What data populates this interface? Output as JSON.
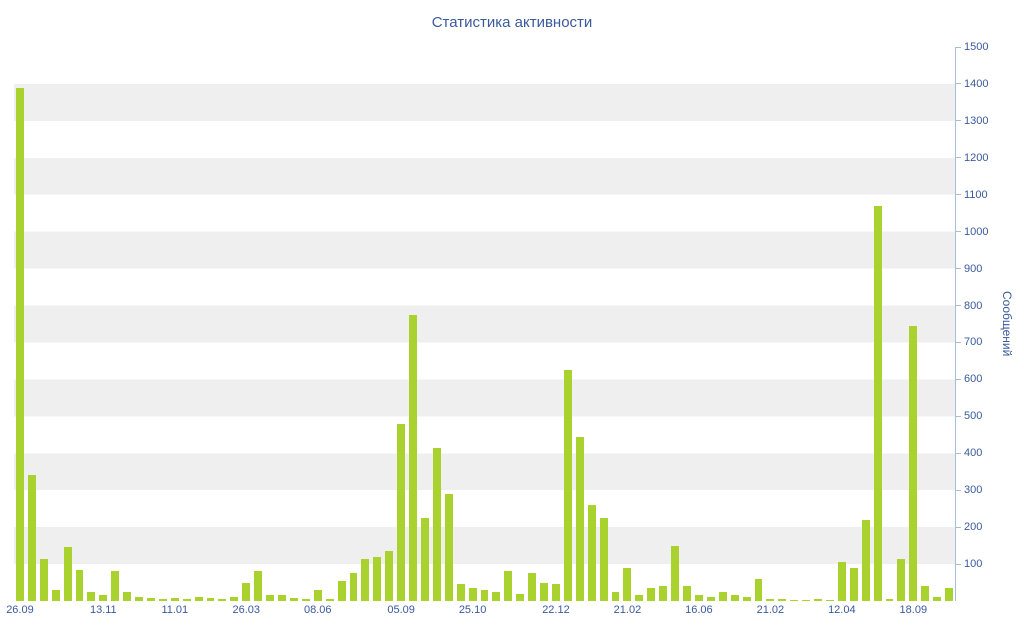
{
  "chart_data": {
    "type": "bar",
    "title": "Статистика активности",
    "ylabel": "Сообщений",
    "xlabel": "",
    "ylim": [
      0,
      1500
    ],
    "grid": "horizontal alternating stripe bands every 100 units",
    "legend_position": "none",
    "bar_color": "#aad22f",
    "axis_color": "#a9bdd9",
    "text_color": "#3a5a9c",
    "stripe_color": "#efefef",
    "yticks": [
      "1500",
      "1400",
      "1300",
      "1200",
      "1100",
      "1000",
      "900",
      "800",
      "700",
      "600",
      "500",
      "400",
      "300",
      "200",
      "100"
    ],
    "xticks": [
      {
        "label": "26.09",
        "index": 0
      },
      {
        "label": "13.11",
        "index": 7
      },
      {
        "label": "11.01",
        "index": 13
      },
      {
        "label": "26.03",
        "index": 19
      },
      {
        "label": "08.06",
        "index": 25
      },
      {
        "label": "05.09",
        "index": 32
      },
      {
        "label": "25.10",
        "index": 38
      },
      {
        "label": "22.12",
        "index": 45
      },
      {
        "label": "21.02",
        "index": 51
      },
      {
        "label": "16.06",
        "index": 57
      },
      {
        "label": "21.02",
        "index": 63
      },
      {
        "label": "12.04",
        "index": 69
      },
      {
        "label": "18.09",
        "index": 75
      }
    ],
    "values": [
      1390,
      340,
      115,
      30,
      145,
      85,
      25,
      15,
      80,
      25,
      10,
      8,
      5,
      8,
      5,
      10,
      8,
      5,
      10,
      50,
      80,
      15,
      15,
      8,
      5,
      30,
      5,
      55,
      75,
      115,
      120,
      135,
      480,
      775,
      225,
      415,
      290,
      45,
      35,
      30,
      25,
      80,
      20,
      75,
      50,
      45,
      625,
      445,
      260,
      225,
      25,
      90,
      15,
      35,
      40,
      150,
      40,
      15,
      10,
      25,
      15,
      10,
      60,
      5,
      5,
      3,
      3,
      5,
      3,
      105,
      90,
      220,
      1070,
      5,
      115,
      745,
      40,
      10,
      35
    ]
  }
}
